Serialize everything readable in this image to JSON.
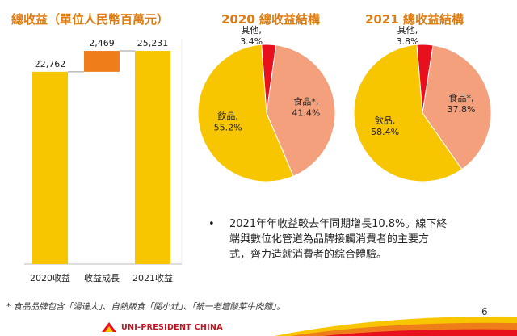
{
  "chart_data": [
    {
      "type": "bar",
      "title": "總收益（單位人民幣百萬元）",
      "categories": [
        "2020收益",
        "收益成長",
        "2021收益"
      ],
      "values": [
        22762,
        2469,
        25231
      ],
      "value_labels": [
        "22,762",
        "2,469",
        "25,231"
      ],
      "bar_colors": [
        "#f7c600",
        "#ef7d1a",
        "#f7c600"
      ],
      "waterfall": true,
      "ylim": [
        0,
        26000
      ]
    },
    {
      "type": "pie",
      "title": "2020 總收益結構",
      "slices": [
        {
          "name": "其他",
          "value": 3.4,
          "label": "其他,",
          "pct": "3.4%",
          "color": "#e8101c"
        },
        {
          "name": "食品*",
          "value": 41.4,
          "label": "食品*,",
          "pct": "41.4%",
          "color": "#f4a07c"
        },
        {
          "name": "飲品",
          "value": 55.2,
          "label": "飲品,",
          "pct": "55.2%",
          "color": "#f7c600"
        }
      ]
    },
    {
      "type": "pie",
      "title": "2021 總收益結構",
      "slices": [
        {
          "name": "其他",
          "value": 3.8,
          "label": "其他,",
          "pct": "3.8%",
          "color": "#e8101c"
        },
        {
          "name": "食品*",
          "value": 37.8,
          "label": "食品*,",
          "pct": "37.8%",
          "color": "#f4a07c"
        },
        {
          "name": "飲品",
          "value": 58.4,
          "label": "飲品,",
          "pct": "58.4%",
          "color": "#f7c600"
        }
      ]
    }
  ],
  "note": {
    "bullet": "•",
    "line1": "2021年年收益較去年同期增長10.8%。線下終",
    "line2": "端與數位化管道為品牌接觸消費者的主要方",
    "line3": "式，齊力造就消費者的綜合體驗。"
  },
  "footnote": "* 食品品牌包含「湯達人」、自熱飯食「開小灶」、「統一老壇酸菜牛肉麵」。",
  "page_number": "6",
  "brand": "UNI-PRESIDENT CHINA"
}
